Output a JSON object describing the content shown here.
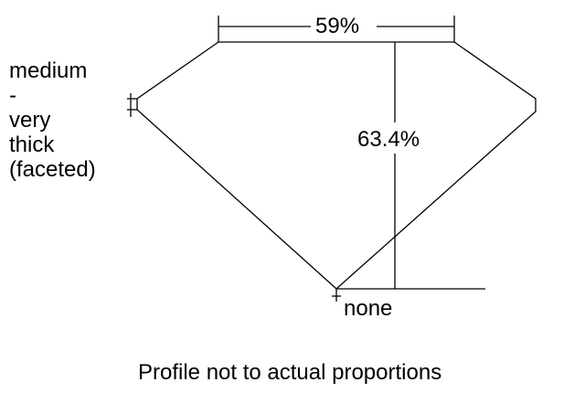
{
  "diagram": {
    "table_label": "59%",
    "depth_label": "63.4%",
    "girdle_lines": [
      "medium",
      "-",
      "very",
      "thick",
      "(faceted)"
    ],
    "culet_label": "none",
    "caption": "Profile not to actual proportions"
  }
}
